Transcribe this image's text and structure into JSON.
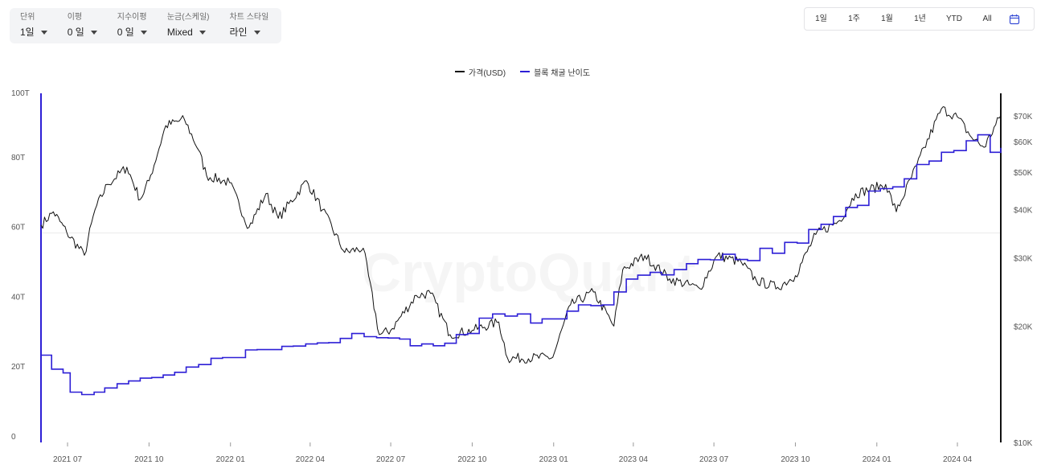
{
  "controls": [
    {
      "label": "단위",
      "value": "1일"
    },
    {
      "label": "이평",
      "value": "0 일"
    },
    {
      "label": "지수이평",
      "value": "0 일"
    },
    {
      "label": "눈금(스케일)",
      "value": "Mixed"
    },
    {
      "label": "차트 스타일",
      "value": "라인"
    }
  ],
  "ranges": [
    "1일",
    "1주",
    "1월",
    "1년",
    "YTD",
    "All"
  ],
  "icons": {
    "calendar": "calendar-icon"
  },
  "watermark": "CryptoQuant",
  "colors": {
    "price": "#111111",
    "difficulty": "#2d1fd6",
    "grid": "#ececec"
  },
  "chart_data": {
    "type": "line",
    "legend": [
      "가격(USD)",
      "블록 채굴 난이도"
    ],
    "legend_position": "top-center",
    "x_ticks": [
      "2021 07",
      "2021 10",
      "2022 01",
      "2022 04",
      "2022 07",
      "2022 10",
      "2023 01",
      "2023 04",
      "2023 07",
      "2023 10",
      "2024 01",
      "2024 04"
    ],
    "x_range": [
      "2021-06-01",
      "2024-05-20"
    ],
    "y_left": {
      "label": "",
      "ticks": [
        "0",
        "20T",
        "40T",
        "60T",
        "80T",
        "100T"
      ],
      "range": [
        0,
        100
      ],
      "unit": "T"
    },
    "y_right": {
      "label": "",
      "scale": "log",
      "ticks": [
        "$10K",
        "$20K",
        "$30K",
        "$40K",
        "$50K",
        "$60K",
        "$70K"
      ],
      "tick_values": [
        10000,
        20000,
        30000,
        40000,
        50000,
        60000,
        70000
      ],
      "range": [
        10000,
        80000
      ]
    },
    "grid": "horizontal",
    "series": [
      {
        "name": "가격(USD)",
        "axis": "right",
        "points": [
          [
            "2021-06-01",
            36500
          ],
          [
            "2021-06-15",
            39500
          ],
          [
            "2021-06-30",
            35000
          ],
          [
            "2021-07-20",
            30500
          ],
          [
            "2021-08-01",
            40000
          ],
          [
            "2021-08-15",
            46500
          ],
          [
            "2021-09-06",
            51500
          ],
          [
            "2021-09-21",
            42500
          ],
          [
            "2021-10-01",
            47500
          ],
          [
            "2021-10-20",
            66000
          ],
          [
            "2021-11-10",
            68500
          ],
          [
            "2021-11-26",
            57000
          ],
          [
            "2021-12-05",
            49000
          ],
          [
            "2021-12-31",
            47000
          ],
          [
            "2022-01-22",
            36000
          ],
          [
            "2022-02-10",
            44000
          ],
          [
            "2022-02-24",
            38000
          ],
          [
            "2022-03-28",
            47500
          ],
          [
            "2022-04-15",
            40000
          ],
          [
            "2022-05-10",
            31000
          ],
          [
            "2022-05-31",
            31800
          ],
          [
            "2022-06-18",
            19000
          ],
          [
            "2022-07-01",
            19500
          ],
          [
            "2022-07-30",
            24000
          ],
          [
            "2022-08-15",
            24300
          ],
          [
            "2022-09-06",
            19000
          ],
          [
            "2022-10-01",
            19500
          ],
          [
            "2022-10-31",
            20500
          ],
          [
            "2022-11-10",
            16500
          ],
          [
            "2022-12-31",
            16600
          ],
          [
            "2023-01-20",
            22700
          ],
          [
            "2023-02-15",
            24500
          ],
          [
            "2023-03-10",
            20000
          ],
          [
            "2023-03-20",
            28000
          ],
          [
            "2023-04-14",
            30400
          ],
          [
            "2023-05-12",
            26500
          ],
          [
            "2023-06-15",
            25000
          ],
          [
            "2023-07-05",
            30500
          ],
          [
            "2023-08-01",
            29200
          ],
          [
            "2023-08-18",
            26200
          ],
          [
            "2023-09-11",
            25200
          ],
          [
            "2023-10-01",
            27000
          ],
          [
            "2023-10-24",
            34500
          ],
          [
            "2023-11-20",
            37500
          ],
          [
            "2023-12-08",
            44000
          ],
          [
            "2024-01-11",
            46500
          ],
          [
            "2024-01-23",
            39500
          ],
          [
            "2024-02-15",
            52000
          ],
          [
            "2024-03-14",
            73000
          ],
          [
            "2024-04-01",
            69500
          ],
          [
            "2024-04-17",
            61500
          ],
          [
            "2024-05-01",
            58000
          ],
          [
            "2024-05-20",
            70000
          ]
        ]
      },
      {
        "name": "블록 채굴 난이도",
        "axis": "left",
        "points": [
          [
            "2021-06-01",
            25.0
          ],
          [
            "2021-06-13",
            21.0
          ],
          [
            "2021-06-26",
            19.9
          ],
          [
            "2021-07-04",
            14.4
          ],
          [
            "2021-07-17",
            13.7
          ],
          [
            "2021-07-31",
            14.4
          ],
          [
            "2021-08-12",
            15.6
          ],
          [
            "2021-08-26",
            16.8
          ],
          [
            "2021-09-08",
            17.6
          ],
          [
            "2021-09-21",
            18.4
          ],
          [
            "2021-10-04",
            18.6
          ],
          [
            "2021-10-17",
            19.3
          ],
          [
            "2021-10-30",
            20.1
          ],
          [
            "2021-11-12",
            21.6
          ],
          [
            "2021-11-26",
            22.3
          ],
          [
            "2021-12-10",
            24.1
          ],
          [
            "2021-12-23",
            24.3
          ],
          [
            "2022-01-05",
            24.3
          ],
          [
            "2022-01-18",
            26.5
          ],
          [
            "2022-01-31",
            26.6
          ],
          [
            "2022-02-14",
            26.6
          ],
          [
            "2022-02-28",
            27.5
          ],
          [
            "2022-03-13",
            27.6
          ],
          [
            "2022-03-27",
            28.2
          ],
          [
            "2022-04-09",
            28.5
          ],
          [
            "2022-04-22",
            28.6
          ],
          [
            "2022-05-05",
            29.8
          ],
          [
            "2022-05-18",
            31.2
          ],
          [
            "2022-06-01",
            30.3
          ],
          [
            "2022-06-15",
            30.0
          ],
          [
            "2022-06-28",
            29.9
          ],
          [
            "2022-07-11",
            29.6
          ],
          [
            "2022-07-23",
            27.7
          ],
          [
            "2022-08-05",
            28.2
          ],
          [
            "2022-08-18",
            27.7
          ],
          [
            "2022-08-31",
            28.4
          ],
          [
            "2022-09-13",
            30.9
          ],
          [
            "2022-09-26",
            31.2
          ],
          [
            "2022-10-09",
            35.6
          ],
          [
            "2022-10-24",
            36.8
          ],
          [
            "2022-11-07",
            36.2
          ],
          [
            "2022-11-21",
            36.8
          ],
          [
            "2022-12-06",
            34.2
          ],
          [
            "2022-12-19",
            35.4
          ],
          [
            "2023-01-02",
            35.4
          ],
          [
            "2023-01-16",
            37.6
          ],
          [
            "2023-01-29",
            39.4
          ],
          [
            "2023-02-12",
            39.2
          ],
          [
            "2023-02-25",
            39.4
          ],
          [
            "2023-03-10",
            43.1
          ],
          [
            "2023-03-24",
            46.8
          ],
          [
            "2023-04-06",
            47.9
          ],
          [
            "2023-04-20",
            48.7
          ],
          [
            "2023-05-03",
            48.0
          ],
          [
            "2023-05-17",
            49.5
          ],
          [
            "2023-05-31",
            51.2
          ],
          [
            "2023-06-13",
            52.4
          ],
          [
            "2023-06-27",
            52.3
          ],
          [
            "2023-07-11",
            53.9
          ],
          [
            "2023-07-25",
            52.4
          ],
          [
            "2023-08-08",
            52.1
          ],
          [
            "2023-08-22",
            55.6
          ],
          [
            "2023-09-05",
            54.2
          ],
          [
            "2023-09-19",
            57.3
          ],
          [
            "2023-10-03",
            57.1
          ],
          [
            "2023-10-16",
            61.0
          ],
          [
            "2023-10-30",
            62.5
          ],
          [
            "2023-11-13",
            64.7
          ],
          [
            "2023-11-27",
            67.3
          ],
          [
            "2023-12-10",
            67.9
          ],
          [
            "2023-12-23",
            72.0
          ],
          [
            "2024-01-05",
            72.7
          ],
          [
            "2024-01-19",
            73.2
          ],
          [
            "2024-02-01",
            75.5
          ],
          [
            "2024-02-15",
            79.6
          ],
          [
            "2024-02-29",
            80.6
          ],
          [
            "2024-03-14",
            83.1
          ],
          [
            "2024-03-28",
            83.6
          ],
          [
            "2024-04-11",
            86.4
          ],
          [
            "2024-04-24",
            88.1
          ],
          [
            "2024-05-08",
            83.1
          ],
          [
            "2024-05-20",
            84.4
          ]
        ]
      }
    ]
  }
}
